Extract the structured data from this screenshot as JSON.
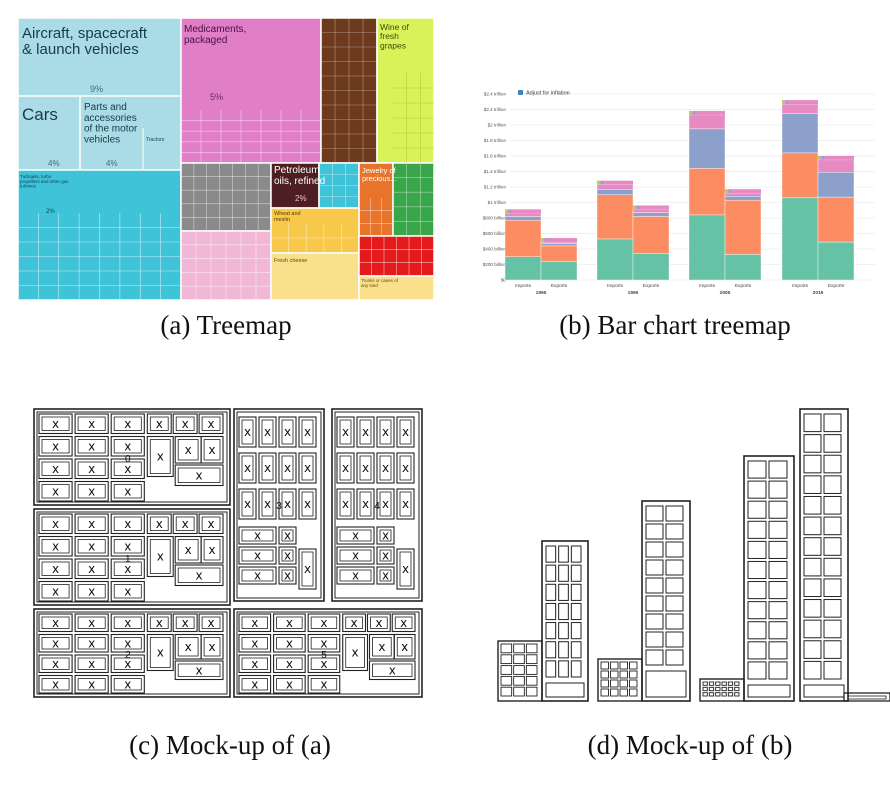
{
  "captions": {
    "a": "(a) Treemap",
    "b": "(b) Bar chart treemap",
    "c": "(c) Mock-up of (a)",
    "d": "(d) Mock-up of (b)"
  },
  "treemap": {
    "labels": {
      "aircraft": "Aircraft, spacecraft & launch vehicles",
      "aircraft_pct": "9%",
      "cars": "Cars",
      "cars_pct": "4%",
      "parts": "Parts and accessories of the motor vehicles",
      "parts_pct": "4%",
      "tractors": "Tractors",
      "turbojets": "Turbojets, turbo propellers and other gas turbines",
      "turbojets_pct": "2%",
      "medicaments": "Medicaments, packaged",
      "medicaments_pct": "5%",
      "wine": "Wine of fresh grapes",
      "petroleum": "Petroleum oils, refined",
      "petroleum_pct": "2%",
      "jewelry": "Jewelry of precious...",
      "wheat": "Wheat and meslin",
      "fresh_cheese": "Fresh cheese",
      "trunks": "Trunks or cases of any kind"
    },
    "colors": {
      "transport": "#a9dce6",
      "machinery": "#3ec3d8",
      "chemicals": "#e07ec8",
      "food_brown": "#6e3a1e",
      "wine": "#d9f25a",
      "grey": "#8a8a8a",
      "petroleum": "#4e1f22",
      "orange": "#e8742c",
      "green": "#3aa64a",
      "pink": "#f2b7d6",
      "yellow": "#f7c84a",
      "cheese": "#fae08a",
      "red": "#e51a1a"
    }
  },
  "chart_data": {
    "type": "bar",
    "checkbox_label": "Adjust for inflation",
    "ylabels": [
      "$2.4 trillion",
      "$2.2 trillion",
      "$2 trillion",
      "$1.8 trillion",
      "$1.6 trillion",
      "$1.4 trillion",
      "$1.2 trillion",
      "$1 trillion",
      "$800 billion",
      "$600 billion",
      "$400 billion",
      "$200 billion",
      "$0"
    ],
    "ylim": [
      0,
      2.4
    ],
    "groups": [
      {
        "year": "1995",
        "bars": [
          {
            "label": "Imports",
            "segments": [
              0.3,
              0.47,
              0.05,
              0.04
            ]
          },
          {
            "label": "Exports",
            "segments": [
              0.24,
              0.2,
              0.03,
              0.02
            ]
          }
        ]
      },
      {
        "year": "1995",
        "bars": [
          {
            "label": "Imports",
            "segments": [
              0.53,
              0.57,
              0.07,
              0.06
            ]
          },
          {
            "label": "Exports",
            "segments": [
              0.34,
              0.48,
              0.05,
              0.04
            ]
          }
        ]
      },
      {
        "year": "2005",
        "bars": [
          {
            "label": "Imports",
            "segments": [
              0.84,
              0.6,
              0.51,
              0.18
            ]
          },
          {
            "label": "Exports",
            "segments": [
              0.33,
              0.7,
              0.05,
              0.04
            ]
          }
        ]
      },
      {
        "year": "2015",
        "bars": [
          {
            "label": "Imports",
            "segments": [
              1.06,
              0.58,
              0.51,
              0.12
            ]
          },
          {
            "label": "Exports",
            "segments": [
              0.49,
              0.58,
              0.32,
              0.16
            ]
          }
        ]
      }
    ],
    "series_colors": [
      "#66c2a5",
      "#fc8d62",
      "#8da0cb",
      "#e78ac3",
      "#a6d854"
    ],
    "grid": true
  },
  "mockup_a": {
    "mark": "x",
    "block_numbers": [
      "0",
      "1",
      "2",
      "3",
      "4",
      "5"
    ]
  }
}
